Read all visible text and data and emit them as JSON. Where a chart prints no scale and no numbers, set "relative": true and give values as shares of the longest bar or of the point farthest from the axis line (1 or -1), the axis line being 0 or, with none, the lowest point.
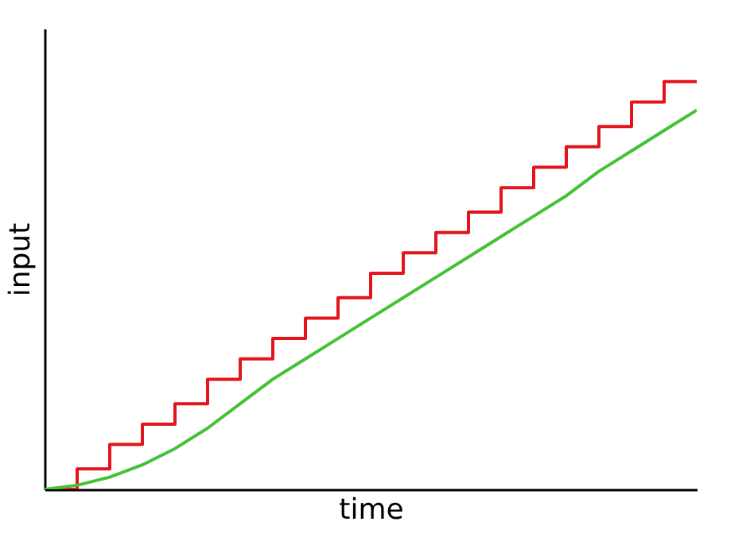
{
  "chart_data": {
    "type": "line",
    "relative": true,
    "xlabel": "time",
    "ylabel": "input",
    "tick_labels": false,
    "grid": false,
    "legend": false,
    "categories": [
      null,
      null,
      null,
      null,
      null,
      null,
      null,
      null,
      null,
      null,
      null,
      null,
      null,
      null,
      null,
      null,
      null,
      null,
      null,
      null,
      null
    ],
    "series": [
      {
        "type": "step",
        "color": "#e3141b",
        "values": [
          0,
          0.05,
          0.11,
          0.16,
          0.21,
          0.27,
          0.32,
          0.37,
          0.42,
          0.47,
          0.53,
          0.58,
          0.63,
          0.68,
          0.74,
          0.79,
          0.84,
          0.89,
          0.95,
          1,
          1
        ]
      },
      {
        "color": "#44c237",
        "values": [
          0,
          0.01,
          0.03,
          0.06,
          0.1,
          0.15,
          0.21,
          0.27,
          0.32,
          0.37,
          0.42,
          0.47,
          0.52,
          0.57,
          0.62,
          0.67,
          0.72,
          0.78,
          0.83,
          0.88,
          0.93
        ]
      }
    ]
  }
}
